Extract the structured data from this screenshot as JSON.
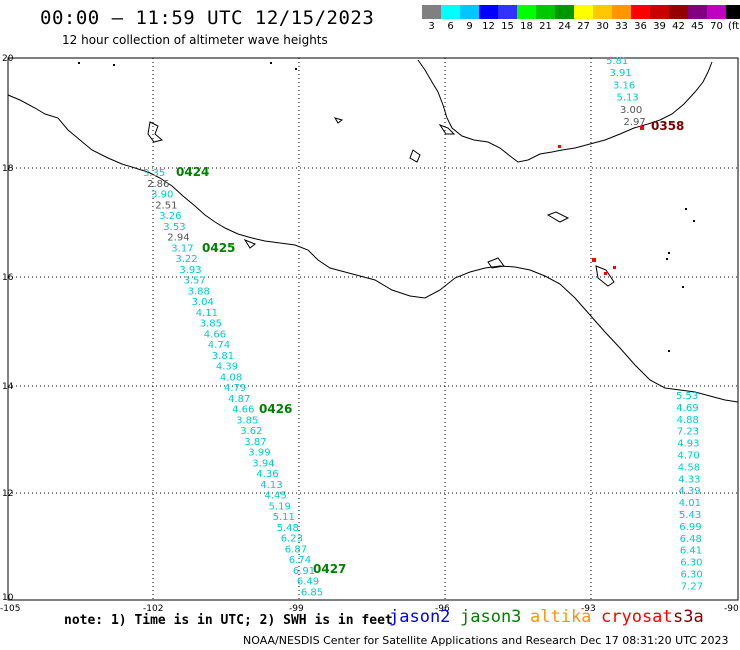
{
  "header": {
    "title": "00:00 – 11:59 UTC 12/15/2023",
    "subtitle": "12 hour collection of altimeter wave heights"
  },
  "color_scale": {
    "colors": [
      "#808080",
      "#00ffff",
      "#00c8ff",
      "#0000ff",
      "#3232ff",
      "#00ff00",
      "#00c800",
      "#009600",
      "#ffff00",
      "#ffc800",
      "#ff9600",
      "#ff0000",
      "#c80000",
      "#960000",
      "#800080",
      "#c000c0",
      "#000000"
    ],
    "labels": [
      "3",
      "6",
      "9",
      "12",
      "15",
      "18",
      "21",
      "24",
      "27",
      "30",
      "33",
      "36",
      "39",
      "42",
      "45",
      "70",
      "(ft)"
    ]
  },
  "axes": {
    "lon_ticks": [
      "-105",
      "-102",
      "-99",
      "-96",
      "-93",
      "-90"
    ],
    "lat_ticks": [
      "20",
      "18",
      "16",
      "14",
      "12",
      "10"
    ]
  },
  "tracks": [
    {
      "name": "track-west",
      "color": "#00cccc",
      "heights": [
        "3.35",
        "2.86",
        "3.90",
        "2.51",
        "3.26",
        "3.53",
        "2.94",
        "3.17",
        "3.22",
        "3.93",
        "3.57",
        "3.88",
        "3.04",
        "4.11",
        "3.85",
        "4.66",
        "4.74",
        "3.81",
        "4.39",
        "4.08",
        "4.79",
        "4.87",
        "4.66",
        "3.85",
        "3.62",
        "3.87",
        "3.99",
        "3.94",
        "4.36",
        "4.13",
        "4.45",
        "5.19",
        "5.11",
        "5.48",
        "6.23",
        "6.87",
        "6.74",
        "6.91",
        "6.49",
        "6.85"
      ],
      "gray_indices": [
        1,
        3,
        6
      ]
    },
    {
      "name": "track-east",
      "color": "#00cccc",
      "heights": [
        "5.53",
        "4.69",
        "4.88",
        "7.23",
        "4.93",
        "4.70",
        "4.58",
        "4.33",
        "4.39",
        "4.01",
        "5.43",
        "6.99",
        "6.48",
        "6.41",
        "6.30",
        "6.30",
        "7.27"
      ]
    },
    {
      "name": "track-gulf",
      "color": "#00cccc",
      "heights": [
        "5.81",
        "3.91",
        "3.16",
        "5.13",
        "3.00",
        "2.97"
      ],
      "gray_indices": [
        4,
        5
      ]
    }
  ],
  "time_labels": [
    {
      "text": "0424",
      "color": "#008000"
    },
    {
      "text": "0425",
      "color": "#008000"
    },
    {
      "text": "0426",
      "color": "#008000"
    },
    {
      "text": "0427",
      "color": "#008000"
    },
    {
      "text": "0358",
      "color": "#800000"
    }
  ],
  "note": "note: 1) Time is in UTC; 2) SWH is in feet",
  "satellites": [
    {
      "name": "jason2",
      "color": "#0000ff"
    },
    {
      "name": "jason3",
      "color": "#008000"
    },
    {
      "name": "altika",
      "color": "#ff9600"
    },
    {
      "name": "cryosat",
      "color": "#ff0000"
    },
    {
      "name": "s3a",
      "color": "#800000"
    }
  ],
  "footer": {
    "center": "NOAA/NESDIS Center for Satellite Applications and Research",
    "timestamp": "Dec 17 08:31:20 UTC 2023"
  }
}
